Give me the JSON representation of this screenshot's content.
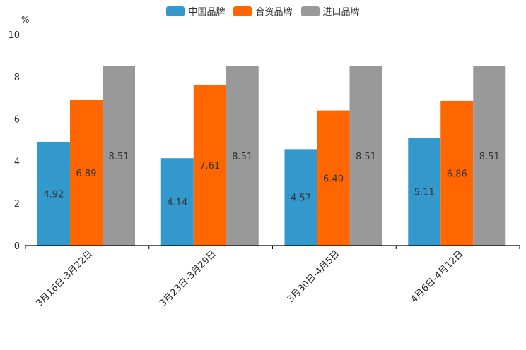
{
  "chart_data": {
    "type": "bar",
    "unit": "%",
    "categories": [
      "3月16日-3月22日",
      "3月23日-3月29日",
      "3月30日-4月5日",
      "4月6日-4月12日"
    ],
    "series": [
      {
        "name": "中国品牌",
        "color": "#3399cc",
        "values": [
          4.92,
          4.14,
          4.57,
          5.11
        ]
      },
      {
        "name": "合资品牌",
        "color": "#ff6600",
        "values": [
          6.89,
          7.61,
          6.4,
          6.86
        ]
      },
      {
        "name": "进口品牌",
        "color": "#999999",
        "values": [
          8.51,
          8.51,
          8.51,
          8.51
        ]
      }
    ],
    "yticks": [
      0,
      2,
      4,
      6,
      8,
      10
    ],
    "ylim": [
      0,
      10
    ],
    "title": "",
    "xlabel": "",
    "ylabel": "%"
  }
}
